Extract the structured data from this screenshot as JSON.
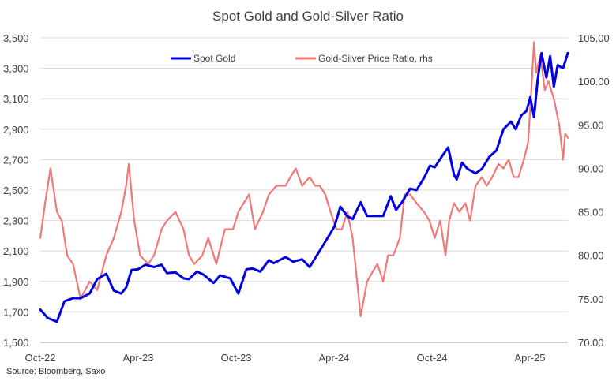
{
  "chart_data": {
    "type": "line",
    "title": "Spot Gold and Gold-Silver Ratio",
    "source": "Source: Bloomberg, Saxo",
    "x_tick_labels": [
      "Oct-22",
      "Apr-23",
      "Oct-23",
      "Apr-24",
      "Oct-24",
      "Apr-25"
    ],
    "x_range": [
      "2022-10-01",
      "2025-06-10"
    ],
    "y_left": {
      "range": [
        1500,
        3500
      ],
      "ticks": [
        "1,500",
        "1,700",
        "1,900",
        "2,100",
        "2,300",
        "2,500",
        "2,700",
        "2,900",
        "3,100",
        "3,300",
        "3,500"
      ]
    },
    "y_right": {
      "range": [
        70,
        105
      ],
      "ticks": [
        "70.00",
        "75.00",
        "80.00",
        "85.00",
        "90.00",
        "95.00",
        "100.00",
        "105.00"
      ]
    },
    "grid": "horizontal",
    "legend_position": "top",
    "series": [
      {
        "name": "Spot Gold",
        "axis": "left",
        "color": "#0000e0",
        "points": [
          [
            "2022-10-01",
            1715
          ],
          [
            "2022-10-15",
            1660
          ],
          [
            "2022-11-01",
            1635
          ],
          [
            "2022-11-15",
            1770
          ],
          [
            "2022-12-01",
            1790
          ],
          [
            "2022-12-15",
            1790
          ],
          [
            "2023-01-01",
            1820
          ],
          [
            "2023-01-15",
            1915
          ],
          [
            "2023-02-01",
            1950
          ],
          [
            "2023-02-15",
            1840
          ],
          [
            "2023-03-01",
            1820
          ],
          [
            "2023-03-10",
            1860
          ],
          [
            "2023-03-20",
            1975
          ],
          [
            "2023-04-01",
            1980
          ],
          [
            "2023-04-15",
            2010
          ],
          [
            "2023-05-01",
            1995
          ],
          [
            "2023-05-15",
            2010
          ],
          [
            "2023-05-25",
            1955
          ],
          [
            "2023-06-10",
            1960
          ],
          [
            "2023-06-25",
            1920
          ],
          [
            "2023-07-05",
            1915
          ],
          [
            "2023-07-20",
            1965
          ],
          [
            "2023-08-01",
            1945
          ],
          [
            "2023-08-20",
            1890
          ],
          [
            "2023-09-01",
            1940
          ],
          [
            "2023-09-20",
            1920
          ],
          [
            "2023-10-05",
            1820
          ],
          [
            "2023-10-20",
            1980
          ],
          [
            "2023-11-01",
            1985
          ],
          [
            "2023-11-15",
            1965
          ],
          [
            "2023-12-01",
            2040
          ],
          [
            "2023-12-10",
            2020
          ],
          [
            "2024-01-01",
            2060
          ],
          [
            "2024-01-15",
            2030
          ],
          [
            "2024-02-01",
            2045
          ],
          [
            "2024-02-15",
            1995
          ],
          [
            "2024-03-01",
            2080
          ],
          [
            "2024-03-15",
            2160
          ],
          [
            "2024-04-01",
            2260
          ],
          [
            "2024-04-12",
            2390
          ],
          [
            "2024-04-25",
            2330
          ],
          [
            "2024-05-05",
            2310
          ],
          [
            "2024-05-20",
            2420
          ],
          [
            "2024-06-01",
            2330
          ],
          [
            "2024-06-15",
            2330
          ],
          [
            "2024-07-01",
            2330
          ],
          [
            "2024-07-15",
            2460
          ],
          [
            "2024-07-25",
            2370
          ],
          [
            "2024-08-05",
            2420
          ],
          [
            "2024-08-20",
            2510
          ],
          [
            "2024-09-01",
            2500
          ],
          [
            "2024-09-15",
            2580
          ],
          [
            "2024-09-26",
            2660
          ],
          [
            "2024-10-05",
            2650
          ],
          [
            "2024-10-20",
            2730
          ],
          [
            "2024-10-30",
            2780
          ],
          [
            "2024-11-10",
            2600
          ],
          [
            "2024-11-15",
            2570
          ],
          [
            "2024-11-25",
            2680
          ],
          [
            "2024-12-05",
            2640
          ],
          [
            "2024-12-20",
            2610
          ],
          [
            "2025-01-01",
            2640
          ],
          [
            "2025-01-15",
            2720
          ],
          [
            "2025-01-28",
            2760
          ],
          [
            "2025-02-10",
            2900
          ],
          [
            "2025-02-24",
            2950
          ],
          [
            "2025-03-05",
            2900
          ],
          [
            "2025-03-15",
            2990
          ],
          [
            "2025-03-25",
            3020
          ],
          [
            "2025-04-01",
            3110
          ],
          [
            "2025-04-08",
            2980
          ],
          [
            "2025-04-15",
            3230
          ],
          [
            "2025-04-22",
            3400
          ],
          [
            "2025-05-01",
            3240
          ],
          [
            "2025-05-08",
            3380
          ],
          [
            "2025-05-15",
            3180
          ],
          [
            "2025-05-22",
            3320
          ],
          [
            "2025-06-01",
            3300
          ],
          [
            "2025-06-10",
            3400
          ]
        ]
      },
      {
        "name": "Gold-Silver Price Ratio, rhs",
        "axis": "right",
        "color": "#f07878",
        "points": [
          [
            "2022-10-01",
            82.0
          ],
          [
            "2022-10-10",
            86.0
          ],
          [
            "2022-10-20",
            90.0
          ],
          [
            "2022-11-01",
            85.0
          ],
          [
            "2022-11-10",
            84.0
          ],
          [
            "2022-11-20",
            80.0
          ],
          [
            "2022-12-01",
            79.0
          ],
          [
            "2022-12-15",
            75.0
          ],
          [
            "2023-01-01",
            77.0
          ],
          [
            "2023-01-15",
            76.0
          ],
          [
            "2023-02-01",
            80.0
          ],
          [
            "2023-02-15",
            82.0
          ],
          [
            "2023-03-01",
            85.0
          ],
          [
            "2023-03-10",
            88.0
          ],
          [
            "2023-03-15",
            90.5
          ],
          [
            "2023-03-25",
            84.0
          ],
          [
            "2023-04-05",
            80.0
          ],
          [
            "2023-04-20",
            79.0
          ],
          [
            "2023-05-01",
            80.0
          ],
          [
            "2023-05-15",
            83.0
          ],
          [
            "2023-05-25",
            84.0
          ],
          [
            "2023-06-10",
            85.0
          ],
          [
            "2023-06-25",
            83.0
          ],
          [
            "2023-07-05",
            80.0
          ],
          [
            "2023-07-15",
            79.0
          ],
          [
            "2023-07-30",
            80.0
          ],
          [
            "2023-08-10",
            82.0
          ],
          [
            "2023-08-25",
            79.0
          ],
          [
            "2023-09-10",
            83.0
          ],
          [
            "2023-09-25",
            83.0
          ],
          [
            "2023-10-05",
            85.0
          ],
          [
            "2023-10-15",
            86.0
          ],
          [
            "2023-10-25",
            87.0
          ],
          [
            "2023-11-05",
            83.0
          ],
          [
            "2023-11-20",
            85.0
          ],
          [
            "2023-12-01",
            87.0
          ],
          [
            "2023-12-15",
            88.0
          ],
          [
            "2024-01-01",
            88.0
          ],
          [
            "2024-01-10",
            89.0
          ],
          [
            "2024-01-20",
            90.0
          ],
          [
            "2024-02-01",
            88.0
          ],
          [
            "2024-02-15",
            89.0
          ],
          [
            "2024-02-25",
            88.0
          ],
          [
            "2024-03-05",
            88.0
          ],
          [
            "2024-03-15",
            87.0
          ],
          [
            "2024-03-25",
            85.0
          ],
          [
            "2024-04-05",
            83.0
          ],
          [
            "2024-04-15",
            83.0
          ],
          [
            "2024-04-25",
            85.0
          ],
          [
            "2024-05-05",
            82.0
          ],
          [
            "2024-05-15",
            76.0
          ],
          [
            "2024-05-20",
            73.0
          ],
          [
            "2024-06-01",
            77.0
          ],
          [
            "2024-06-10",
            78.0
          ],
          [
            "2024-06-20",
            79.0
          ],
          [
            "2024-07-01",
            77.0
          ],
          [
            "2024-07-10",
            80.0
          ],
          [
            "2024-07-20",
            80.0
          ],
          [
            "2024-08-01",
            82.0
          ],
          [
            "2024-08-10",
            87.0
          ],
          [
            "2024-08-20",
            87.0
          ],
          [
            "2024-09-01",
            86.0
          ],
          [
            "2024-09-15",
            85.0
          ],
          [
            "2024-09-25",
            84.0
          ],
          [
            "2024-10-05",
            82.0
          ],
          [
            "2024-10-15",
            84.0
          ],
          [
            "2024-10-25",
            80.0
          ],
          [
            "2024-11-01",
            84.0
          ],
          [
            "2024-11-10",
            86.0
          ],
          [
            "2024-11-20",
            85.0
          ],
          [
            "2024-12-01",
            86.0
          ],
          [
            "2024-12-10",
            84.0
          ],
          [
            "2024-12-20",
            88.0
          ],
          [
            "2025-01-01",
            89.0
          ],
          [
            "2025-01-10",
            88.0
          ],
          [
            "2025-01-20",
            89.0
          ],
          [
            "2025-02-01",
            90.5
          ],
          [
            "2025-02-10",
            90.0
          ],
          [
            "2025-02-20",
            91.0
          ],
          [
            "2025-03-01",
            89.0
          ],
          [
            "2025-03-10",
            89.0
          ],
          [
            "2025-03-20",
            91.0
          ],
          [
            "2025-03-28",
            93.0
          ],
          [
            "2025-04-03",
            99.0
          ],
          [
            "2025-04-08",
            104.5
          ],
          [
            "2025-04-12",
            101.0
          ],
          [
            "2025-04-20",
            103.0
          ],
          [
            "2025-04-28",
            99.0
          ],
          [
            "2025-05-05",
            100.0
          ],
          [
            "2025-05-15",
            98.0
          ],
          [
            "2025-05-25",
            95.0
          ],
          [
            "2025-06-01",
            91.0
          ],
          [
            "2025-06-05",
            94.0
          ],
          [
            "2025-06-10",
            93.5
          ]
        ]
      }
    ]
  }
}
